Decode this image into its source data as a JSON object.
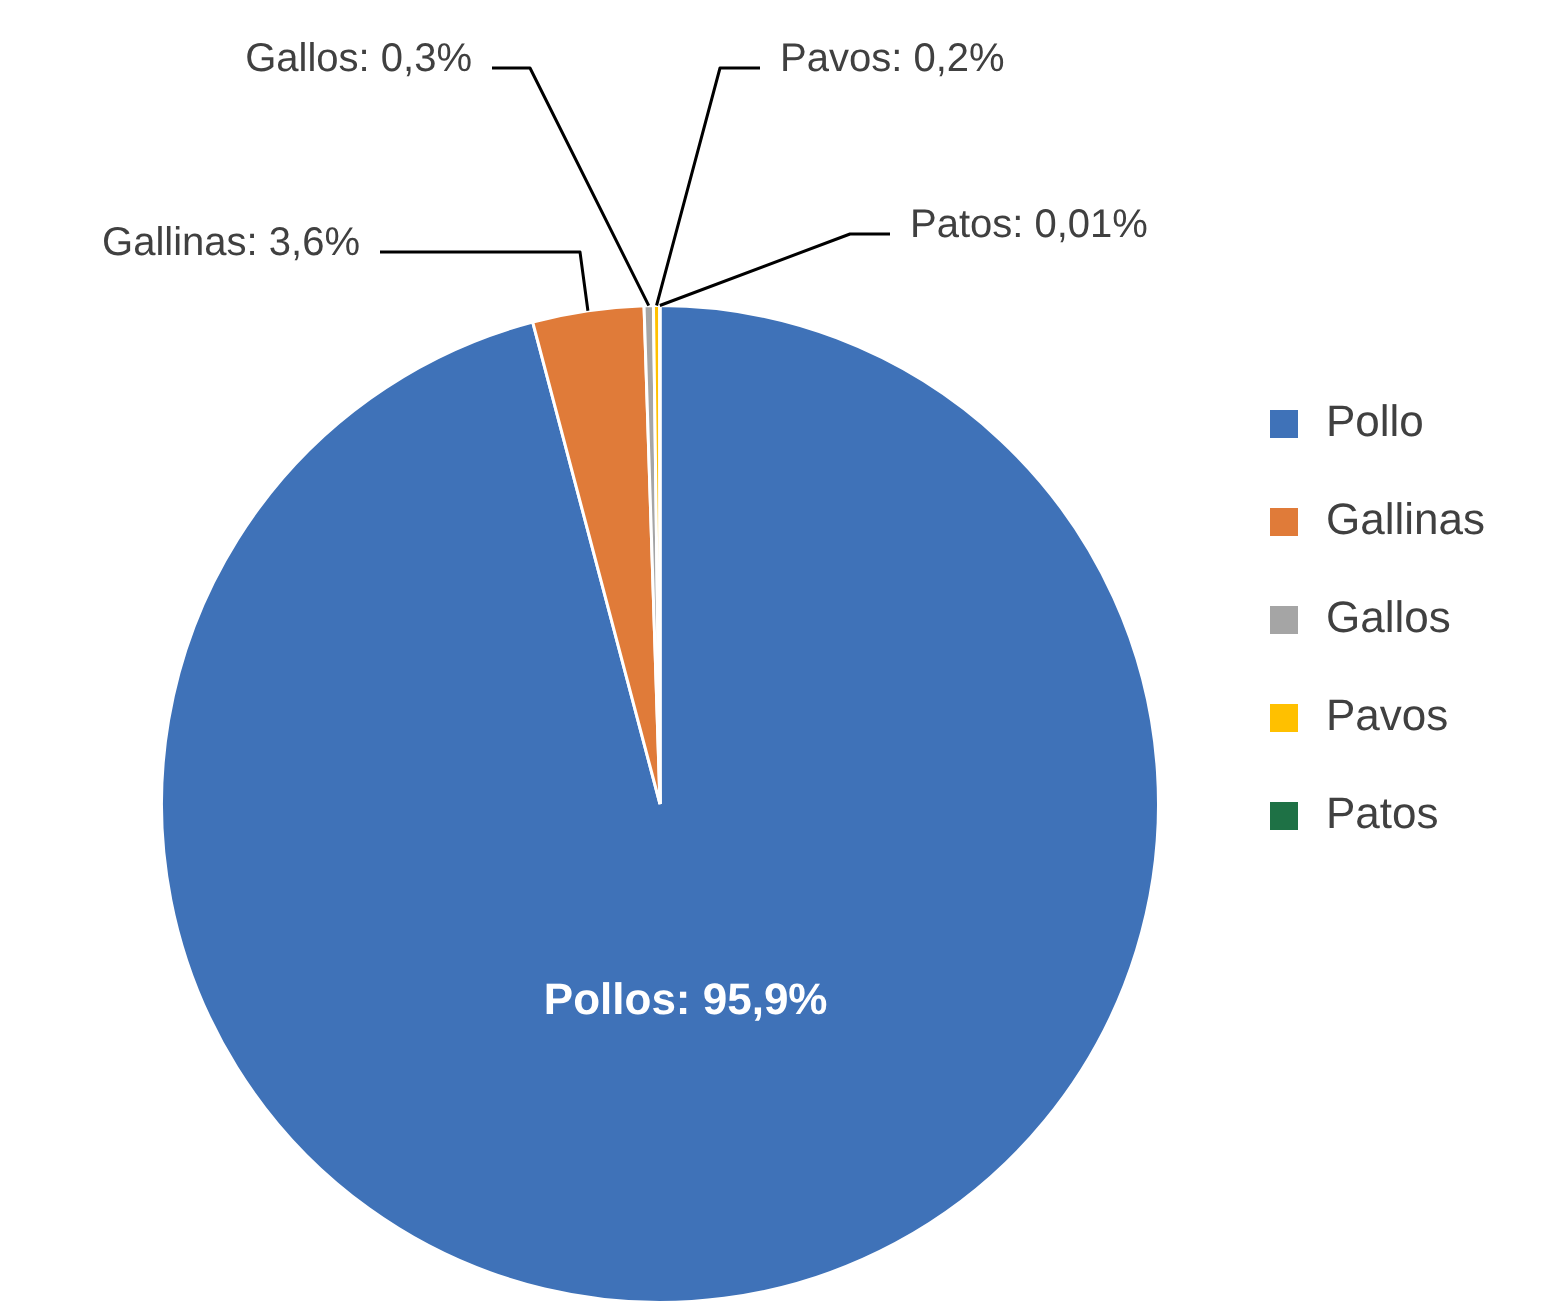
{
  "chart_data": {
    "type": "pie",
    "categories": [
      "Pollo",
      "Gallinas",
      "Gallos",
      "Pavos",
      "Patos"
    ],
    "values": [
      95.9,
      3.6,
      0.3,
      0.2,
      0.01
    ],
    "colors": [
      "#3f72b8",
      "#e07b39",
      "#a5a5a5",
      "#ffc000",
      "#1e7145"
    ],
    "value_labels": [
      "Pollos: 95,9%",
      "Gallinas: 3,6%",
      "Gallos: 0,3%",
      "Pavos: 0,2%",
      "Patos: 0,01%"
    ],
    "legend": "right"
  }
}
